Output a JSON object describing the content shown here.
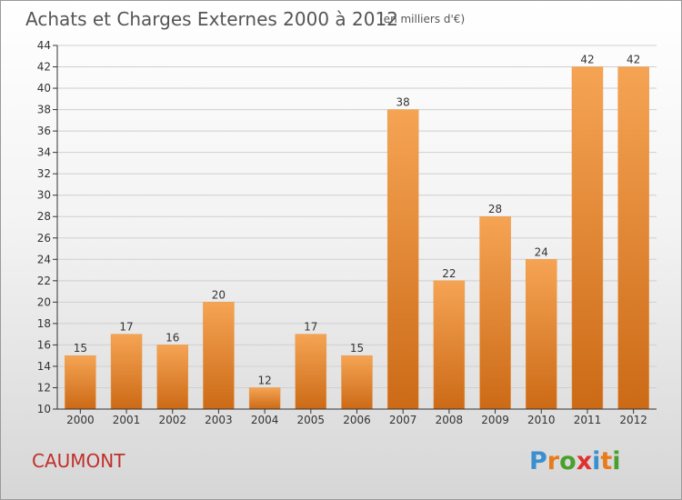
{
  "header": {
    "title": "Achats et Charges Externes 2000 à 2012",
    "subtitle": "(en milliers d'€)"
  },
  "commune": "CAUMONT",
  "logo": {
    "text": "Proxiti",
    "letter_colors": [
      "#3a8fd0",
      "#e87b1c",
      "#4aa02c",
      "#e03030",
      "#3a8fd0",
      "#e87b1c",
      "#4aa02c"
    ]
  },
  "colors": {
    "bar_light": "#f5a454",
    "bar_dark": "#cc6a16",
    "grid": "#cfcfcf",
    "axis": "#333333"
  },
  "chart_data": {
    "type": "bar",
    "title": "Achats et Charges Externes 2000 à 2012",
    "subtitle": "(en milliers d'€)",
    "categories": [
      "2000",
      "2001",
      "2002",
      "2003",
      "2004",
      "2005",
      "2006",
      "2007",
      "2008",
      "2009",
      "2010",
      "2011",
      "2012"
    ],
    "values": [
      15,
      17,
      16,
      20,
      12,
      17,
      15,
      38,
      22,
      28,
      24,
      42,
      42
    ],
    "ylim": [
      10,
      44
    ],
    "yticks": [
      10,
      12,
      14,
      16,
      18,
      20,
      22,
      24,
      26,
      28,
      30,
      32,
      34,
      36,
      38,
      40,
      42,
      44
    ],
    "grid": true,
    "xlabel": "",
    "ylabel": ""
  }
}
